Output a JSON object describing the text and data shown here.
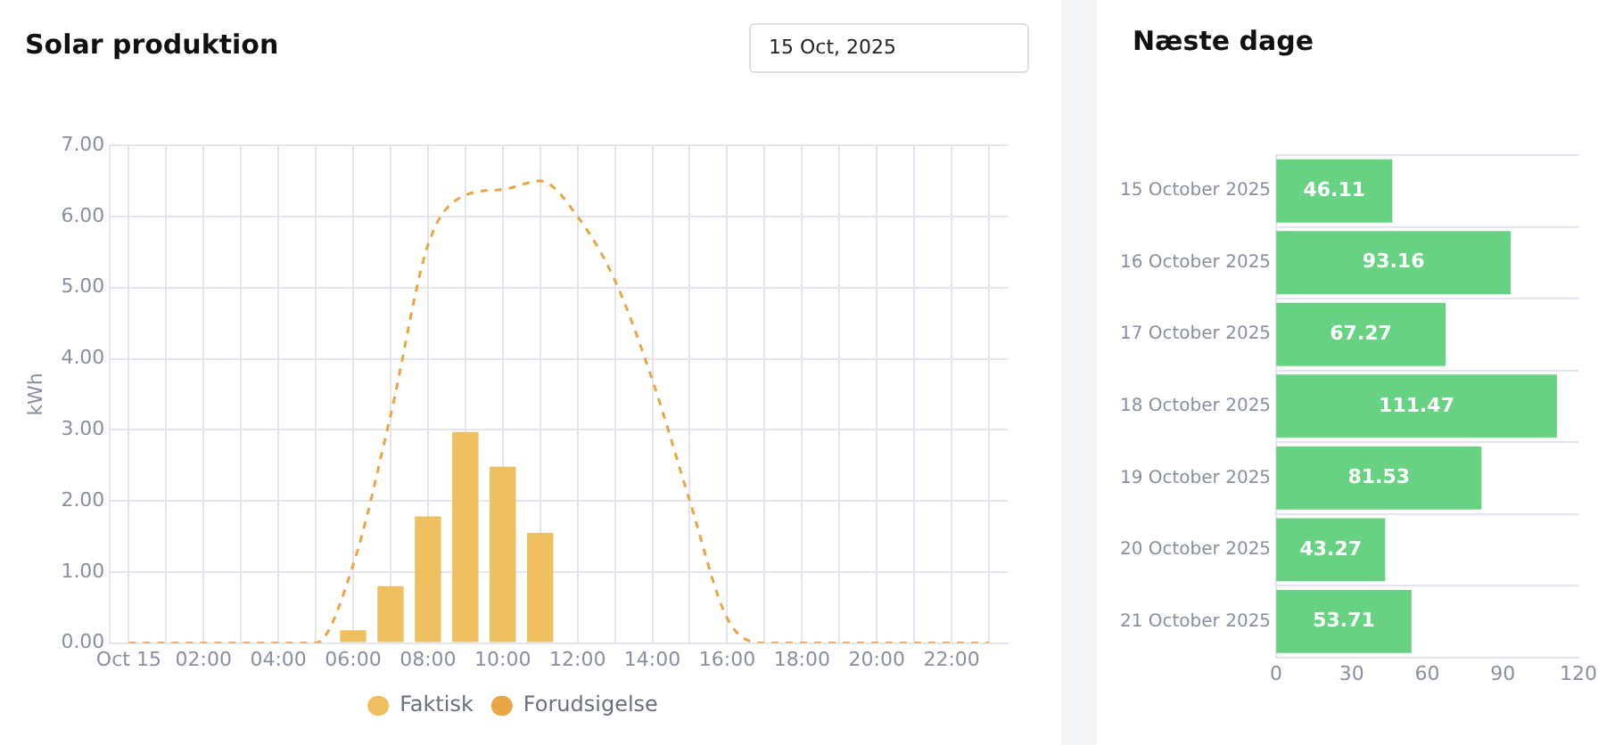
{
  "chart_data": [
    {
      "type": "bar",
      "title": "Solar produktion",
      "annotations": [
        "15 Oct, 2025"
      ],
      "ylabel": "kWh",
      "categories": [
        "Oct 15",
        null,
        "02:00",
        null,
        "04:00",
        null,
        "06:00",
        null,
        "08:00",
        null,
        "10:00",
        null,
        "12:00",
        null,
        "14:00",
        null,
        "16:00",
        null,
        "18:00",
        null,
        "20:00",
        null,
        "22:00",
        null
      ],
      "series": [
        {
          "name": "Faktisk",
          "type": "bar",
          "color": "#eebf5e",
          "values": [
            0,
            0,
            0,
            0,
            0,
            0,
            0.18,
            0.8,
            1.78,
            2.97,
            2.48,
            1.55,
            null,
            null,
            null,
            null,
            null,
            null,
            null,
            null,
            null,
            null,
            null,
            null
          ]
        },
        {
          "name": "Forudsigelse",
          "type": "line",
          "color": "#e9a444",
          "line_style": "dashed",
          "marker": "none",
          "values": [
            0,
            0,
            0,
            0,
            0,
            0,
            1.1,
            3.2,
            5.6,
            6.3,
            6.38,
            6.5,
            6.0,
            5.1,
            3.7,
            2.0,
            0.35,
            0,
            0,
            0,
            0,
            0,
            0,
            0
          ]
        }
      ],
      "ylim": [
        0,
        7
      ],
      "yticks": [
        {
          "value": 0,
          "label": "0.00"
        },
        {
          "value": 1,
          "label": "1.00"
        },
        {
          "value": 2,
          "label": "2.00"
        },
        {
          "value": 3,
          "label": "3.00"
        },
        {
          "value": 4,
          "label": "4.00"
        },
        {
          "value": 5,
          "label": "5.00"
        },
        {
          "value": 6,
          "label": "6.00"
        },
        {
          "value": 7,
          "label": "7.00"
        }
      ],
      "grid": true,
      "legend": "bottom"
    },
    {
      "type": "bar",
      "title": "Næste dage",
      "orientation": "horizontal",
      "categories": [
        "15 October 2025",
        "16 October 2025",
        "17 October 2025",
        "18 October 2025",
        "19 October 2025",
        "20 October 2025",
        "21 October 2025"
      ],
      "values": [
        46.11,
        93.16,
        67.27,
        111.47,
        81.53,
        43.27,
        53.71
      ],
      "color": "#66d282",
      "xlim": [
        0,
        120
      ],
      "xticks": [
        0,
        30,
        60,
        90,
        120
      ],
      "grid": "y",
      "data_labels": true,
      "legend": false
    }
  ]
}
